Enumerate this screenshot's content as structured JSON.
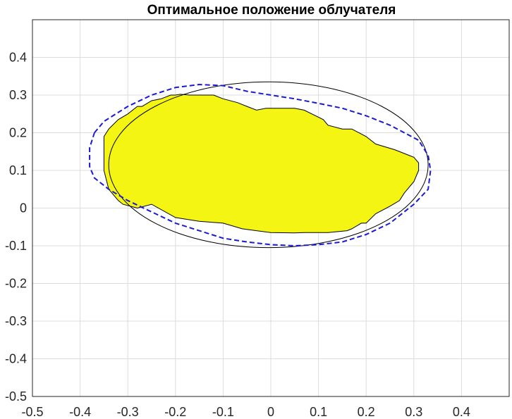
{
  "chart_data": {
    "type": "area",
    "title": "Оптимальное положение облучателя",
    "xlim": [
      -0.5,
      0.5
    ],
    "ylim": [
      -0.5,
      0.5
    ],
    "xticks": [
      -0.5,
      -0.4,
      -0.3,
      -0.2,
      -0.1,
      0,
      0.1,
      0.2,
      0.3,
      0.4
    ],
    "yticks": [
      -0.5,
      -0.4,
      -0.3,
      -0.2,
      -0.1,
      0,
      0.1,
      0.2,
      0.3,
      0.4
    ],
    "xtick_labels": [
      "-0.5",
      "-0.4",
      "-0.3",
      "-0.2",
      "-0.1",
      "0",
      "0.1",
      "0.2",
      "0.3",
      "0.4"
    ],
    "ytick_labels": [
      "-0.5",
      "-0.4",
      "-0.3",
      "-0.2",
      "-0.1",
      "0",
      "0.1",
      "0.2",
      "0.3",
      "0.4"
    ],
    "grid": true,
    "colors": {
      "region_fill": "#f5f514",
      "region_edge": "#000000",
      "ellipse": "#000000",
      "dashed": "#1a1ad6"
    },
    "series": [
      {
        "style": "filled-polygon",
        "x": [
          -0.17,
          -0.12,
          -0.1,
          -0.07,
          -0.05,
          -0.03,
          -0.01,
          0.05,
          0.07,
          0.11,
          0.12,
          0.15,
          0.17,
          0.2,
          0.22,
          0.26,
          0.29,
          0.3,
          0.31,
          0.31,
          0.3,
          0.28,
          0.27,
          0.25,
          0.22,
          0.2,
          0.19,
          0.17,
          0.16,
          0.12,
          0.1,
          0.07,
          0.05,
          0.0,
          -0.03,
          -0.06,
          -0.1,
          -0.15,
          -0.2,
          -0.25,
          -0.28,
          -0.31,
          -0.32,
          -0.34,
          -0.35,
          -0.35,
          -0.34,
          -0.32,
          -0.3,
          -0.28,
          -0.27,
          -0.25,
          -0.23,
          -0.21,
          -0.2,
          -0.19
        ],
        "y": [
          0.3,
          0.3,
          0.29,
          0.28,
          0.27,
          0.26,
          0.265,
          0.265,
          0.26,
          0.235,
          0.22,
          0.21,
          0.21,
          0.19,
          0.17,
          0.155,
          0.14,
          0.135,
          0.12,
          0.1,
          0.07,
          0.04,
          0.02,
          0.005,
          -0.015,
          -0.04,
          -0.04,
          -0.055,
          -0.06,
          -0.065,
          -0.065,
          -0.065,
          -0.066,
          -0.065,
          -0.06,
          -0.055,
          -0.04,
          -0.035,
          -0.025,
          0.01,
          0.0,
          0.01,
          0.02,
          0.05,
          0.1,
          0.19,
          0.21,
          0.235,
          0.25,
          0.27,
          0.27,
          0.285,
          0.29,
          0.3,
          0.3,
          0.302
        ]
      },
      {
        "style": "ellipse",
        "center": [
          -0.005,
          0.115
        ],
        "radii": [
          0.335,
          0.22
        ]
      },
      {
        "style": "dashed-line",
        "x": [
          -0.37,
          -0.35,
          -0.3,
          -0.25,
          -0.2,
          -0.15,
          -0.1,
          -0.05,
          0.0,
          0.05,
          0.1,
          0.15,
          0.2,
          0.25,
          0.28,
          0.31,
          0.33,
          0.335,
          0.33,
          0.3,
          0.25,
          0.2,
          0.15,
          0.1,
          0.05,
          0.0,
          -0.05,
          -0.1,
          -0.15,
          -0.2,
          -0.25,
          -0.3,
          -0.34,
          -0.37,
          -0.38,
          -0.38,
          -0.37
        ],
        "y": [
          0.2,
          0.23,
          0.27,
          0.3,
          0.32,
          0.328,
          0.325,
          0.31,
          0.3,
          0.29,
          0.278,
          0.265,
          0.245,
          0.22,
          0.2,
          0.18,
          0.14,
          0.1,
          0.05,
          0.01,
          -0.04,
          -0.07,
          -0.09,
          -0.097,
          -0.1,
          -0.097,
          -0.09,
          -0.08,
          -0.06,
          -0.04,
          -0.01,
          0.02,
          0.05,
          0.08,
          0.11,
          0.16,
          0.2
        ]
      }
    ]
  }
}
